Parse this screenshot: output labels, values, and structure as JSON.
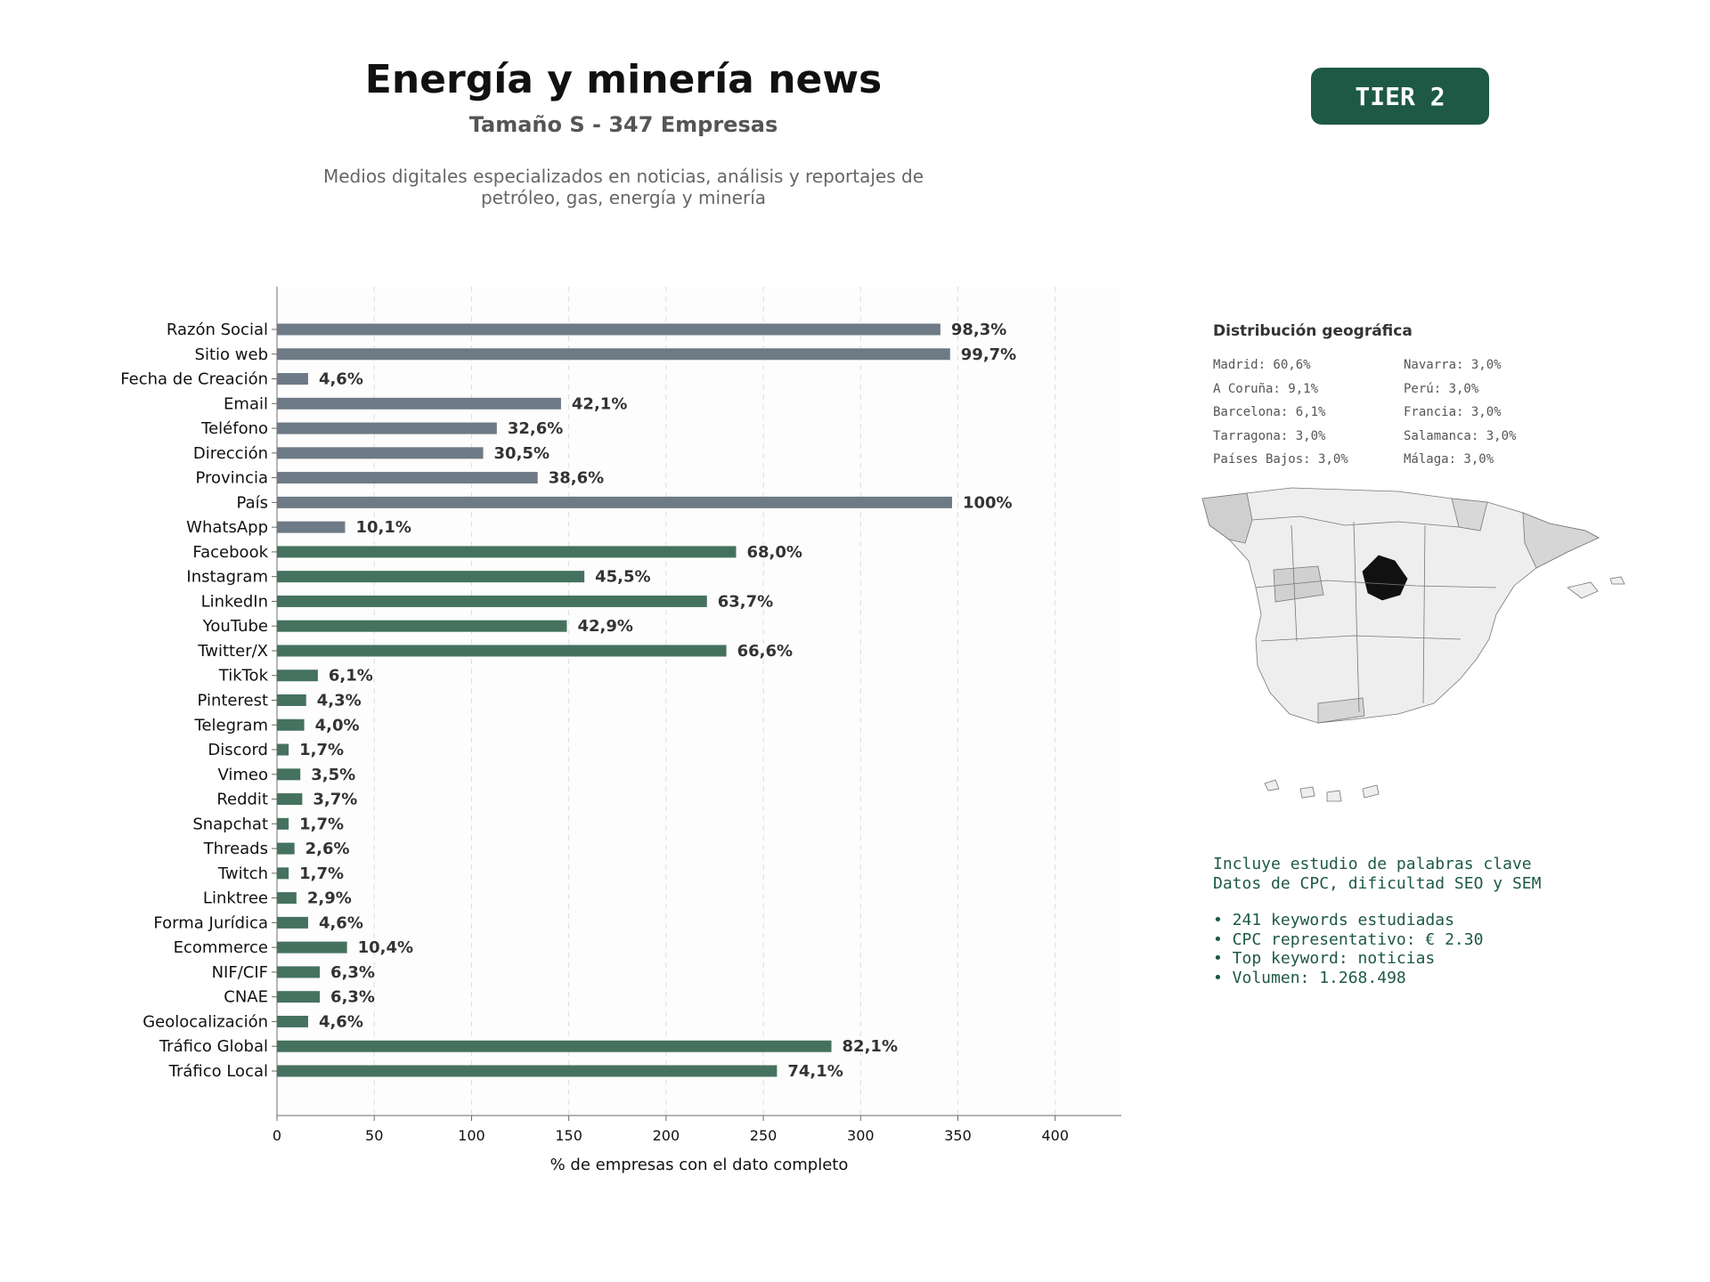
{
  "header": {
    "title": "Energía y minería news",
    "subtitle": "Tamaño S - 347 Empresas",
    "description": "Medios digitales especializados en noticias, análisis y reportajes de petróleo, gas, energía y minería",
    "tier": "TIER 2"
  },
  "chart_data": {
    "type": "bar",
    "orientation": "horizontal",
    "categories": [
      "Razón Social",
      "Sitio web",
      "Fecha de Creación",
      "Email",
      "Teléfono",
      "Dirección",
      "Provincia",
      "País",
      "WhatsApp",
      "Facebook",
      "Instagram",
      "LinkedIn",
      "YouTube",
      "Twitter/X",
      "TikTok",
      "Pinterest",
      "Telegram",
      "Discord",
      "Vimeo",
      "Reddit",
      "Snapchat",
      "Threads",
      "Twitch",
      "Linktree",
      "Forma Jurídica",
      "Ecommerce",
      "NIF/CIF",
      "CNAE",
      "Geolocalización",
      "Tráfico Global",
      "Tráfico Local"
    ],
    "values": [
      341,
      346,
      16,
      146,
      113,
      106,
      134,
      347,
      35,
      236,
      158,
      221,
      149,
      231,
      21,
      15,
      14,
      6,
      12,
      13,
      6,
      9,
      6,
      10,
      16,
      36,
      22,
      22,
      16,
      285,
      257
    ],
    "labels": [
      "98,3%",
      "99,7%",
      "4,6%",
      "42,1%",
      "32,6%",
      "30,5%",
      "38,6%",
      "100%",
      "10,1%",
      "68,0%",
      "45,5%",
      "63,7%",
      "42,9%",
      "66,6%",
      "6,1%",
      "4,3%",
      "4,0%",
      "1,7%",
      "3,5%",
      "3,7%",
      "1,7%",
      "2,6%",
      "1,7%",
      "2,9%",
      "4,6%",
      "10,4%",
      "6,3%",
      "6,3%",
      "4,6%",
      "82,1%",
      "74,1%"
    ],
    "groups": [
      "basic",
      "basic",
      "basic",
      "basic",
      "basic",
      "basic",
      "basic",
      "basic",
      "basic",
      "social",
      "social",
      "social",
      "social",
      "social",
      "social",
      "social",
      "social",
      "social",
      "social",
      "social",
      "social",
      "social",
      "social",
      "social",
      "social",
      "social",
      "social",
      "social",
      "social",
      "social",
      "social"
    ],
    "colors": {
      "basic": "#6e7a85",
      "social": "#45725f"
    },
    "xlabel": "% de empresas con el dato completo",
    "xlim": [
      0,
      434
    ],
    "xticks": [
      0,
      50,
      100,
      150,
      200,
      250,
      300,
      350,
      400
    ],
    "grid": "vertical dashed"
  },
  "geo": {
    "title": "Distribución geográfica",
    "items": [
      "Madrid: 60,6%",
      "Navarra: 3,0%",
      "A Coruña: 9,1%",
      "Perú: 3,0%",
      "Barcelona: 6,1%",
      "Francia: 3,0%",
      "Tarragona: 3,0%",
      "Salamanca: 3,0%",
      "Países Bajos: 3,0%",
      "Málaga: 3,0%"
    ],
    "highlight_color": "#111111"
  },
  "keywords": {
    "line1": "Incluye estudio de palabras clave",
    "line2": "Datos de CPC, dificultad SEO y SEM",
    "bullets": [
      "• 241 keywords estudiadas",
      "• CPC representativo: € 2.30",
      "• Top keyword: noticias",
      "• Volumen: 1.268.498"
    ]
  }
}
